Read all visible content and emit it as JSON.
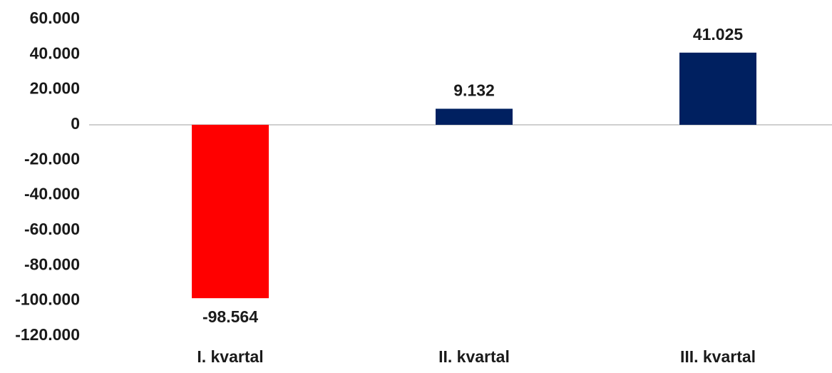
{
  "chart_data": {
    "type": "bar",
    "categories": [
      "I. kvartal",
      "II. kvartal",
      "III. kvartal"
    ],
    "values": [
      -98564,
      9132,
      41025
    ],
    "value_labels": [
      "-98.564",
      "9.132",
      "41.025"
    ],
    "colors": [
      "#ff0000",
      "#002060",
      "#002060"
    ],
    "ylim": [
      -120000,
      60000
    ],
    "yticks": [
      {
        "value": 60000,
        "label": "60.000"
      },
      {
        "value": 40000,
        "label": "40.000"
      },
      {
        "value": 20000,
        "label": "20.000"
      },
      0,
      {
        "value": -20000,
        "label": "-20.000"
      },
      {
        "value": -40000,
        "label": "-40.000"
      },
      {
        "value": -60000,
        "label": "-60.000"
      },
      {
        "value": -80000,
        "label": "-80.000"
      },
      {
        "value": -100000,
        "label": "-100.000"
      },
      {
        "value": -120000,
        "label": "-120.000"
      }
    ],
    "grid": false
  }
}
